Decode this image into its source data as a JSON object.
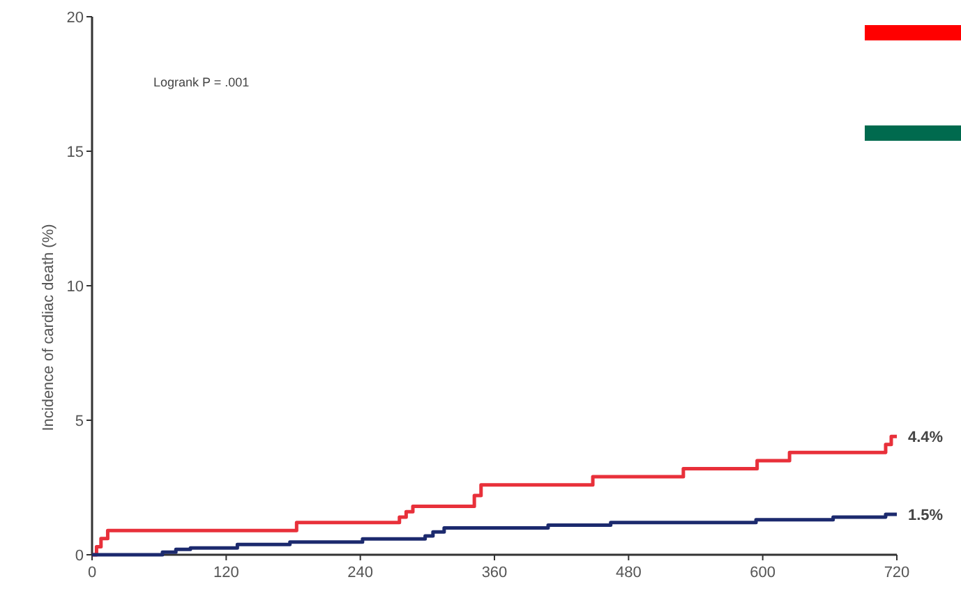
{
  "chart_data": {
    "type": "step",
    "ylabel": "Incidence of cardiac death (%)",
    "xlim": [
      0,
      720
    ],
    "xticks": [
      0,
      120,
      240,
      360,
      480,
      600,
      720
    ],
    "ylim": [
      0,
      20
    ],
    "yticks": [
      0,
      5,
      10,
      15,
      20
    ],
    "grid": false,
    "marker": "none",
    "line_style": "solid",
    "series": [
      {
        "color": "#e8303a",
        "x": [
          0,
          4,
          8,
          14,
          183,
          275,
          281,
          287,
          342,
          348,
          448,
          529,
          595,
          624,
          710,
          715,
          720
        ],
        "values": [
          0,
          0.3,
          0.6,
          0.9,
          1.2,
          1.4,
          1.6,
          1.8,
          2.2,
          2.6,
          2.9,
          3.2,
          3.5,
          3.8,
          4.1,
          4.4,
          4.4
        ]
      },
      {
        "color": "#1c2a6e",
        "x": [
          0,
          63,
          75,
          88,
          130,
          177,
          242,
          298,
          305,
          315,
          408,
          464,
          594,
          663,
          710,
          720
        ],
        "values": [
          0,
          0.1,
          0.2,
          0.25,
          0.38,
          0.47,
          0.59,
          0.7,
          0.85,
          1.0,
          1.1,
          1.2,
          1.3,
          1.4,
          1.5,
          1.5
        ]
      }
    ],
    "annotations": [
      "Logrank P = .001",
      {
        "text": "4.4%",
        "x": 720,
        "y": 4.4
      },
      {
        "text": "1.5%",
        "x": 720,
        "y": 1.5
      }
    ]
  }
}
